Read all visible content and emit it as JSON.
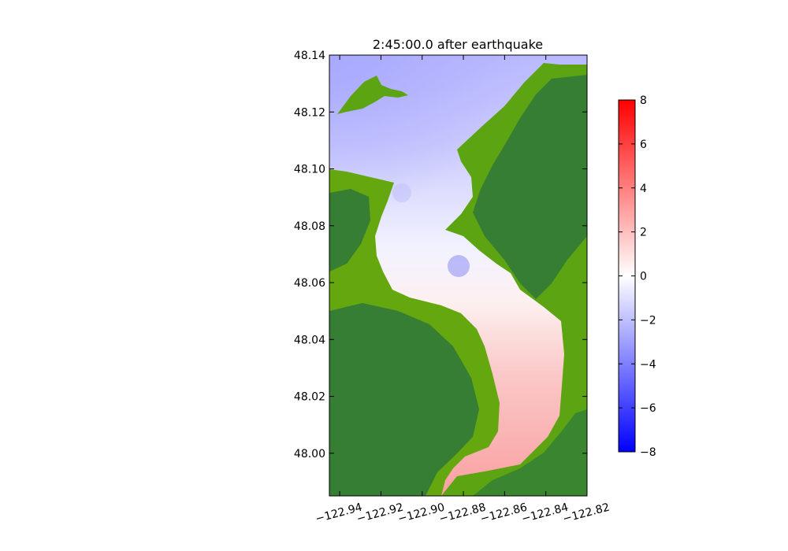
{
  "chart_data": {
    "type": "heatmap",
    "title": "2:45:00.0 after earthquake",
    "xlabel": "",
    "ylabel": "",
    "xlim": [
      -122.945,
      -122.82
    ],
    "ylim": [
      47.985,
      48.14
    ],
    "x_ticks": [
      {
        "value": -122.94,
        "label": "−122.94"
      },
      {
        "value": -122.92,
        "label": "−122.92"
      },
      {
        "value": -122.9,
        "label": "−122.90"
      },
      {
        "value": -122.88,
        "label": "−122.88"
      },
      {
        "value": -122.86,
        "label": "−122.86"
      },
      {
        "value": -122.84,
        "label": "−122.84"
      },
      {
        "value": -122.82,
        "label": "−122.82"
      }
    ],
    "y_ticks": [
      {
        "value": 48.0,
        "label": "48.00"
      },
      {
        "value": 48.02,
        "label": "48.02"
      },
      {
        "value": 48.04,
        "label": "48.04"
      },
      {
        "value": 48.06,
        "label": "48.06"
      },
      {
        "value": 48.08,
        "label": "48.08"
      },
      {
        "value": 48.1,
        "label": "48.10"
      },
      {
        "value": 48.12,
        "label": "48.12"
      },
      {
        "value": 48.14,
        "label": "48.14"
      }
    ],
    "colorbar": {
      "min": -8,
      "max": 8,
      "colors": [
        "#0000ff",
        "#ffffff",
        "#ff0000"
      ],
      "ticks": [
        {
          "value": 8,
          "label": "8"
        },
        {
          "value": 6,
          "label": "6"
        },
        {
          "value": 4,
          "label": "4"
        },
        {
          "value": 2,
          "label": "2"
        },
        {
          "value": 0,
          "label": "0"
        },
        {
          "value": -2,
          "label": "−2"
        },
        {
          "value": -4,
          "label": "−4"
        },
        {
          "value": -6,
          "label": "−6"
        },
        {
          "value": -8,
          "label": "−8"
        }
      ]
    },
    "land_colors": {
      "low": "#6aaa0a",
      "high": "#357e33"
    },
    "water_surface_samples": [
      {
        "x": -122.94,
        "y": 48.135,
        "value": -2.2
      },
      {
        "x": -122.9,
        "y": 48.125,
        "value": -1.5
      },
      {
        "x": -122.89,
        "y": 48.095,
        "value": -1.0
      },
      {
        "x": -122.885,
        "y": 48.066,
        "value": -2.5
      },
      {
        "x": -122.905,
        "y": 48.07,
        "value": -0.2
      },
      {
        "x": -122.87,
        "y": 48.055,
        "value": 0.6
      },
      {
        "x": -122.86,
        "y": 48.045,
        "value": 1.0
      },
      {
        "x": -122.855,
        "y": 48.02,
        "value": 1.8
      },
      {
        "x": -122.855,
        "y": 48.0,
        "value": 2.0
      }
    ]
  }
}
